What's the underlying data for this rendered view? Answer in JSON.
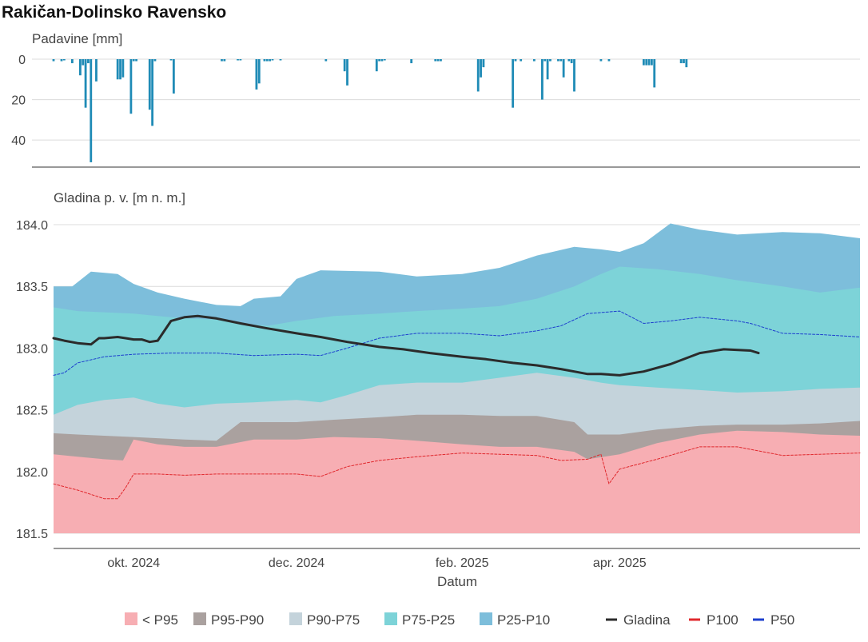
{
  "title": "Rakičan-Dolinsko Ravensko",
  "chart_data": [
    {
      "type": "bar",
      "ylabel": "Padavine [mm]",
      "y_inverted": true,
      "ylim": [
        0,
        53
      ],
      "yticks": [
        0,
        20,
        40
      ],
      "x_start": "2024-09-01",
      "x_end": "2025-06-30",
      "bar_color": "#1f8bb6",
      "x": [
        "2024-09-01",
        "2024-09-04",
        "2024-09-05",
        "2024-09-08",
        "2024-09-11",
        "2024-09-12",
        "2024-09-13",
        "2024-09-14",
        "2024-09-15",
        "2024-09-17",
        "2024-09-25",
        "2024-09-26",
        "2024-09-27",
        "2024-09-30",
        "2024-10-01",
        "2024-10-02",
        "2024-10-07",
        "2024-10-08",
        "2024-10-09",
        "2024-10-15",
        "2024-10-16",
        "2024-11-03",
        "2024-11-04",
        "2024-11-09",
        "2024-11-10",
        "2024-11-16",
        "2024-11-17",
        "2024-11-19",
        "2024-11-20",
        "2024-11-21",
        "2024-11-22",
        "2024-11-25",
        "2024-12-12",
        "2024-12-19",
        "2024-12-20",
        "2024-12-31",
        "2025-01-01",
        "2025-01-02",
        "2025-01-03",
        "2025-01-13",
        "2025-01-22",
        "2025-01-23",
        "2025-01-24",
        "2025-02-07",
        "2025-02-08",
        "2025-02-09",
        "2025-02-20",
        "2025-02-21",
        "2025-02-23",
        "2025-02-28",
        "2025-03-03",
        "2025-03-04",
        "2025-03-05",
        "2025-03-06",
        "2025-03-09",
        "2025-03-10",
        "2025-03-11",
        "2025-03-13",
        "2025-03-14",
        "2025-03-15",
        "2025-03-25",
        "2025-03-28",
        "2025-04-10",
        "2025-04-11",
        "2025-04-12",
        "2025-04-13",
        "2025-04-14",
        "2025-04-24",
        "2025-04-25",
        "2025-04-26"
      ],
      "values": [
        1,
        1,
        0.5,
        2,
        8,
        3,
        24,
        2,
        51,
        11,
        10,
        10,
        9,
        27,
        1,
        1,
        25,
        33,
        1,
        0.5,
        17,
        1,
        1,
        0.5,
        0.5,
        15,
        12,
        1,
        1,
        1,
        0.5,
        0.5,
        1,
        6,
        13,
        6,
        1,
        1,
        0.5,
        2,
        1,
        1,
        1,
        16,
        9,
        4,
        24,
        1,
        1,
        1,
        20,
        1,
        10,
        1,
        1,
        1,
        9,
        1,
        2,
        16,
        1,
        1,
        3,
        3,
        3,
        3,
        14,
        2,
        2,
        4
      ]
    },
    {
      "type": "area",
      "ylabel": "Gladina p. v. [m n. m.]",
      "xlabel": "Datum",
      "ylim": [
        181.45,
        184.05
      ],
      "yticks": [
        181.5,
        182.0,
        182.5,
        183.0,
        183.5,
        184.0
      ],
      "x_start": "2024-09-01",
      "x_end": "2025-06-30",
      "xticks": [
        {
          "date": "2024-10-01",
          "label": "okt. 2024"
        },
        {
          "date": "2024-12-01",
          "label": "dec. 2024"
        },
        {
          "date": "2025-02-01",
          "label": "feb. 2025"
        },
        {
          "date": "2025-04-01",
          "label": "apr. 2025"
        }
      ],
      "bands_base": 181.5,
      "bands": [
        {
          "name": "< P95",
          "color": "#f7aeb3",
          "dates": [
            "2024-09-01",
            "2024-09-10",
            "2024-09-20",
            "2024-09-27",
            "2024-10-01",
            "2024-10-10",
            "2024-10-20",
            "2024-11-01",
            "2024-11-15",
            "2024-12-01",
            "2024-12-15",
            "2025-01-01",
            "2025-01-15",
            "2025-02-01",
            "2025-02-15",
            "2025-03-01",
            "2025-03-15",
            "2025-03-20",
            "2025-04-01",
            "2025-04-15",
            "2025-05-01",
            "2025-05-15",
            "2025-06-01",
            "2025-06-15",
            "2025-06-30"
          ],
          "values": [
            182.14,
            182.12,
            182.1,
            182.09,
            182.26,
            182.22,
            182.2,
            182.2,
            182.26,
            182.26,
            182.28,
            182.27,
            182.25,
            182.22,
            182.2,
            182.2,
            182.16,
            182.1,
            182.14,
            182.23,
            182.3,
            182.33,
            182.32,
            182.3,
            182.29
          ]
        },
        {
          "name": "P95-P90",
          "color": "#aaa19f",
          "dates": [
            "2024-09-01",
            "2024-09-10",
            "2024-09-20",
            "2024-10-01",
            "2024-10-10",
            "2024-10-20",
            "2024-11-01",
            "2024-11-10",
            "2024-11-20",
            "2024-12-01",
            "2024-12-15",
            "2025-01-01",
            "2025-01-15",
            "2025-02-01",
            "2025-02-15",
            "2025-03-01",
            "2025-03-15",
            "2025-03-20",
            "2025-04-01",
            "2025-04-15",
            "2025-05-01",
            "2025-05-15",
            "2025-06-01",
            "2025-06-15",
            "2025-06-30"
          ],
          "values": [
            182.31,
            182.3,
            182.29,
            182.28,
            182.27,
            182.26,
            182.25,
            182.4,
            182.4,
            182.4,
            182.42,
            182.44,
            182.46,
            182.46,
            182.45,
            182.45,
            182.4,
            182.3,
            182.3,
            182.34,
            182.37,
            182.38,
            182.38,
            182.39,
            182.41
          ]
        },
        {
          "name": "P90-P75",
          "color": "#c4d3db",
          "dates": [
            "2024-09-01",
            "2024-09-10",
            "2024-09-20",
            "2024-10-01",
            "2024-10-10",
            "2024-10-20",
            "2024-11-01",
            "2024-11-15",
            "2024-12-01",
            "2024-12-10",
            "2024-12-20",
            "2025-01-01",
            "2025-01-15",
            "2025-02-01",
            "2025-02-15",
            "2025-03-01",
            "2025-03-15",
            "2025-03-25",
            "2025-04-01",
            "2025-04-15",
            "2025-05-01",
            "2025-05-15",
            "2025-06-01",
            "2025-06-15",
            "2025-06-30"
          ],
          "values": [
            182.46,
            182.54,
            182.58,
            182.6,
            182.55,
            182.52,
            182.55,
            182.56,
            182.58,
            182.56,
            182.62,
            182.7,
            182.72,
            182.72,
            182.76,
            182.8,
            182.76,
            182.72,
            182.7,
            182.68,
            182.66,
            182.64,
            182.65,
            182.67,
            182.68
          ]
        },
        {
          "name": "P75-P25",
          "color": "#7dd3d8",
          "dates": [
            "2024-09-01",
            "2024-09-10",
            "2024-09-20",
            "2024-10-01",
            "2024-10-10",
            "2024-10-20",
            "2024-11-01",
            "2024-11-10",
            "2024-11-20",
            "2024-12-01",
            "2024-12-15",
            "2025-01-01",
            "2025-01-15",
            "2025-02-01",
            "2025-02-15",
            "2025-03-01",
            "2025-03-15",
            "2025-03-25",
            "2025-04-01",
            "2025-04-15",
            "2025-05-01",
            "2025-05-15",
            "2025-06-01",
            "2025-06-15",
            "2025-06-30"
          ],
          "values": [
            183.33,
            183.3,
            183.29,
            183.28,
            183.26,
            183.24,
            183.23,
            183.2,
            183.18,
            183.22,
            183.26,
            183.28,
            183.3,
            183.32,
            183.34,
            183.4,
            183.5,
            183.6,
            183.66,
            183.64,
            183.6,
            183.55,
            183.5,
            183.45,
            183.49
          ]
        },
        {
          "name": "P25-P10",
          "color": "#7dbedb",
          "dates": [
            "2024-09-01",
            "2024-09-08",
            "2024-09-15",
            "2024-09-25",
            "2024-10-01",
            "2024-10-10",
            "2024-10-20",
            "2024-11-01",
            "2024-11-10",
            "2024-11-15",
            "2024-11-25",
            "2024-12-01",
            "2024-12-10",
            "2025-01-01",
            "2025-01-15",
            "2025-02-01",
            "2025-02-15",
            "2025-03-01",
            "2025-03-15",
            "2025-03-25",
            "2025-04-01",
            "2025-04-10",
            "2025-04-20",
            "2025-05-01",
            "2025-05-15",
            "2025-06-01",
            "2025-06-15",
            "2025-06-30"
          ],
          "values": [
            183.5,
            183.5,
            183.62,
            183.6,
            183.52,
            183.45,
            183.4,
            183.35,
            183.34,
            183.4,
            183.42,
            183.56,
            183.63,
            183.62,
            183.58,
            183.6,
            183.65,
            183.75,
            183.82,
            183.8,
            183.78,
            183.85,
            184.01,
            183.96,
            183.92,
            183.94,
            183.93,
            183.89
          ]
        }
      ],
      "lines": [
        {
          "name": "Gladina",
          "color": "#2b2b2b",
          "width": 3,
          "dash": "",
          "dates": [
            "2024-09-01",
            "2024-09-05",
            "2024-09-10",
            "2024-09-15",
            "2024-09-18",
            "2024-09-20",
            "2024-09-25",
            "2024-09-28",
            "2024-10-01",
            "2024-10-04",
            "2024-10-07",
            "2024-10-10",
            "2024-10-15",
            "2024-10-20",
            "2024-10-25",
            "2024-11-01",
            "2024-11-10",
            "2024-11-20",
            "2024-12-01",
            "2024-12-10",
            "2024-12-20",
            "2025-01-01",
            "2025-01-10",
            "2025-01-20",
            "2025-02-01",
            "2025-02-10",
            "2025-02-20",
            "2025-03-01",
            "2025-03-10",
            "2025-03-15",
            "2025-03-20",
            "2025-03-25",
            "2025-04-01",
            "2025-04-10",
            "2025-04-20",
            "2025-05-01",
            "2025-05-10",
            "2025-05-20",
            "2025-05-23"
          ],
          "values": [
            183.08,
            183.06,
            183.04,
            183.03,
            183.08,
            183.08,
            183.09,
            183.08,
            183.07,
            183.07,
            183.05,
            183.06,
            183.22,
            183.25,
            183.26,
            183.24,
            183.2,
            183.16,
            183.12,
            183.09,
            183.05,
            183.01,
            182.99,
            182.96,
            182.93,
            182.91,
            182.88,
            182.86,
            182.83,
            182.81,
            182.79,
            182.79,
            182.78,
            182.81,
            182.87,
            182.96,
            182.99,
            182.98,
            182.96
          ]
        },
        {
          "name": "P100",
          "color": "#e0282d",
          "width": 1,
          "dash": "3,2",
          "dates": [
            "2024-09-01",
            "2024-09-10",
            "2024-09-20",
            "2024-09-25",
            "2024-09-28",
            "2024-10-01",
            "2024-10-10",
            "2024-10-20",
            "2024-11-01",
            "2024-11-15",
            "2024-12-01",
            "2024-12-10",
            "2024-12-20",
            "2025-01-01",
            "2025-01-15",
            "2025-02-01",
            "2025-02-15",
            "2025-03-01",
            "2025-03-10",
            "2025-03-20",
            "2025-03-25",
            "2025-03-28",
            "2025-04-01",
            "2025-04-15",
            "2025-05-01",
            "2025-05-15",
            "2025-06-01",
            "2025-06-15",
            "2025-06-30"
          ],
          "values": [
            181.9,
            181.85,
            181.78,
            181.78,
            181.87,
            181.98,
            181.98,
            181.97,
            181.98,
            181.98,
            181.98,
            181.96,
            182.04,
            182.09,
            182.12,
            182.15,
            182.14,
            182.13,
            182.09,
            182.1,
            182.14,
            181.9,
            182.02,
            182.1,
            182.2,
            182.2,
            182.13,
            182.14,
            182.15
          ]
        },
        {
          "name": "P50",
          "color": "#1d3fce",
          "width": 1,
          "dash": "3,2",
          "dates": [
            "2024-09-01",
            "2024-09-05",
            "2024-09-10",
            "2024-09-20",
            "2024-10-01",
            "2024-10-15",
            "2024-11-01",
            "2024-11-15",
            "2024-12-01",
            "2024-12-10",
            "2024-12-20",
            "2025-01-01",
            "2025-01-15",
            "2025-02-01",
            "2025-02-15",
            "2025-03-01",
            "2025-03-10",
            "2025-03-20",
            "2025-04-01",
            "2025-04-10",
            "2025-04-20",
            "2025-05-01",
            "2025-05-15",
            "2025-05-20",
            "2025-06-01",
            "2025-06-15",
            "2025-06-30"
          ],
          "values": [
            182.78,
            182.8,
            182.88,
            182.93,
            182.95,
            182.96,
            182.96,
            182.94,
            182.95,
            182.94,
            183.0,
            183.08,
            183.12,
            183.12,
            183.1,
            183.14,
            183.18,
            183.28,
            183.3,
            183.2,
            183.22,
            183.25,
            183.22,
            183.2,
            183.12,
            183.11,
            183.09
          ]
        }
      ],
      "legend_position": "bottom"
    }
  ],
  "legend": [
    {
      "label": "< P95",
      "type": "square",
      "color": "#f7aeb3"
    },
    {
      "label": "P95-P90",
      "type": "square",
      "color": "#aaa19f"
    },
    {
      "label": "P90-P75",
      "type": "square",
      "color": "#c4d3db"
    },
    {
      "label": "P75-P25",
      "type": "square",
      "color": "#7dd3d8"
    },
    {
      "label": "P25-P10",
      "type": "square",
      "color": "#7dbedb"
    },
    {
      "label": "Gladina",
      "type": "line",
      "color": "#2b2b2b"
    },
    {
      "label": "P100",
      "type": "line",
      "color": "#e0282d"
    },
    {
      "label": "P50",
      "type": "line",
      "color": "#1d3fce"
    }
  ]
}
